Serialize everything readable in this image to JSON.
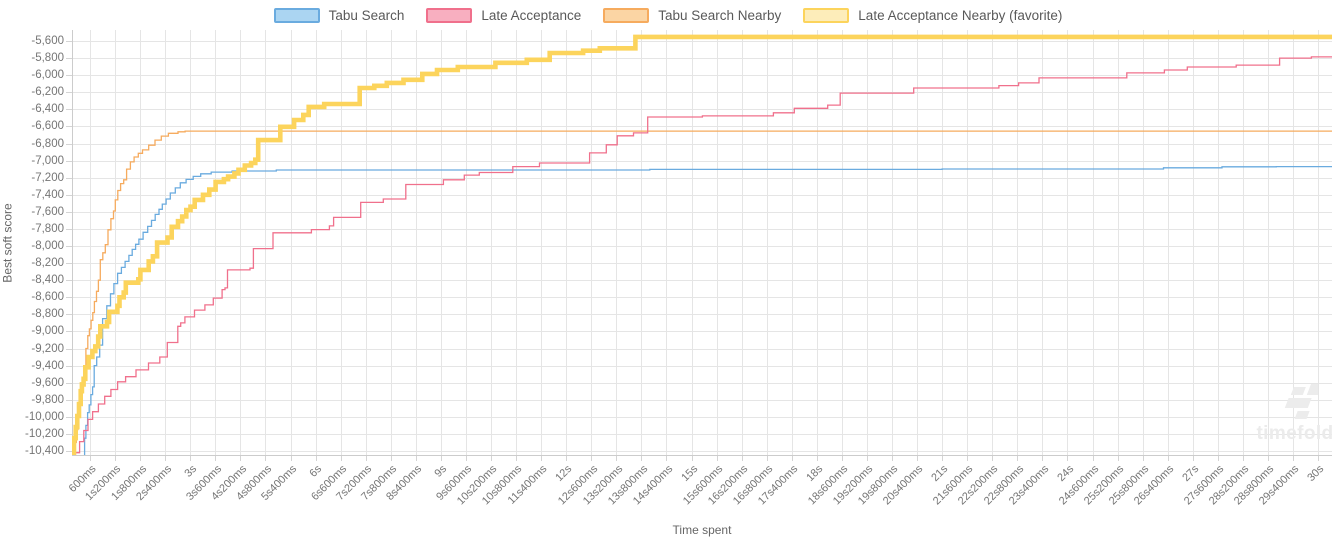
{
  "legend": {
    "items": [
      "Tabu Search",
      "Late Acceptance",
      "Tabu Search Nearby",
      "Late Acceptance Nearby (favorite)"
    ]
  },
  "watermark": {
    "text": "timefold",
    "color": "#ececec"
  },
  "colors": {
    "grid": "#e5e5e5",
    "axis_border": "#cccccc",
    "tick_mark": "#d4d4d4",
    "tick_label": "#757575",
    "axis_title": "#666666",
    "legend_text": "#595959"
  },
  "chart_data": {
    "type": "line",
    "step": "after",
    "title": "",
    "xlabel": "Time spent",
    "ylabel": "Best soft score",
    "x_unit": "milliseconds",
    "xlim_ms": [
      0,
      30300
    ],
    "ylim": [
      -10450,
      -5550
    ],
    "grid": true,
    "legend_position": "top",
    "x_tick_ms": [
      600,
      1200,
      1800,
      2400,
      3000,
      3600,
      4200,
      4800,
      5400,
      6000,
      6600,
      7200,
      7800,
      8400,
      9000,
      9600,
      10200,
      10800,
      11400,
      12000,
      12600,
      13200,
      13800,
      14400,
      15000,
      15600,
      16200,
      16800,
      17400,
      18000,
      18600,
      19200,
      19800,
      20400,
      21000,
      21600,
      22200,
      22800,
      23400,
      24000,
      24600,
      25200,
      25800,
      26400,
      27000,
      27600,
      28200,
      28800,
      29400,
      30000
    ],
    "x_tick_labels": [
      "600ms",
      "1s200ms",
      "1s800ms",
      "2s400ms",
      "3s",
      "3s600ms",
      "4s200ms",
      "4s800ms",
      "5s400ms",
      "6s",
      "6s600ms",
      "7s200ms",
      "7s800ms",
      "8s400ms",
      "9s",
      "9s600ms",
      "10s200ms",
      "10s800ms",
      "11s400ms",
      "12s",
      "12s600ms",
      "13s200ms",
      "13s800ms",
      "14s400ms",
      "15s",
      "15s600ms",
      "16s200ms",
      "16s800ms",
      "17s400ms",
      "18s",
      "18s600ms",
      "19s200ms",
      "19s800ms",
      "20s400ms",
      "21s",
      "21s600ms",
      "22s200ms",
      "22s800ms",
      "23s400ms",
      "24s",
      "24s600ms",
      "25s200ms",
      "25s800ms",
      "26s400ms",
      "27s",
      "27s600ms",
      "28s200ms",
      "28s800ms",
      "29s400ms",
      "30s"
    ],
    "y_tick_labels": [
      "-5,600",
      "-5,800",
      "-6,000",
      "-6,200",
      "-6,400",
      "-6,600",
      "-6,800",
      "-7,000",
      "-7,200",
      "-7,400",
      "-7,600",
      "-7,800",
      "-8,000",
      "-8,200",
      "-8,400",
      "-8,600",
      "-8,800",
      "-9,000",
      "-9,200",
      "-9,400",
      "-9,600",
      "-9,800",
      "-10,000",
      "-10,200",
      "-10,400"
    ],
    "y_tick_start": -5600,
    "y_tick_step": -200,
    "series": [
      {
        "id": "tabu_search",
        "name": "Tabu Search",
        "color": "#6aabdf",
        "fill": "#abd5f2",
        "line_width": 1.3,
        "points": [
          [
            430,
            -10460
          ],
          [
            470,
            -10250
          ],
          [
            500,
            -10100
          ],
          [
            540,
            -9950
          ],
          [
            580,
            -9860
          ],
          [
            620,
            -9740
          ],
          [
            660,
            -9650
          ],
          [
            700,
            -9400
          ],
          [
            760,
            -9300
          ],
          [
            830,
            -9160
          ],
          [
            900,
            -8850
          ],
          [
            1000,
            -8700
          ],
          [
            1090,
            -8560
          ],
          [
            1170,
            -8440
          ],
          [
            1260,
            -8320
          ],
          [
            1350,
            -8250
          ],
          [
            1440,
            -8180
          ],
          [
            1530,
            -8110
          ],
          [
            1610,
            -8040
          ],
          [
            1690,
            -7980
          ],
          [
            1770,
            -7920
          ],
          [
            1870,
            -7840
          ],
          [
            1980,
            -7770
          ],
          [
            2070,
            -7700
          ],
          [
            2160,
            -7630
          ],
          [
            2250,
            -7570
          ],
          [
            2330,
            -7510
          ],
          [
            2420,
            -7450
          ],
          [
            2520,
            -7380
          ],
          [
            2640,
            -7320
          ],
          [
            2760,
            -7260
          ],
          [
            2900,
            -7220
          ],
          [
            3070,
            -7185
          ],
          [
            3250,
            -7155
          ],
          [
            3500,
            -7135
          ],
          [
            4000,
            -7122
          ],
          [
            5060,
            -7110
          ],
          [
            14000,
            -7103
          ],
          [
            21000,
            -7098
          ],
          [
            26300,
            -7085
          ],
          [
            27700,
            -7073
          ],
          [
            29000,
            -7070
          ]
        ]
      },
      {
        "id": "late_acceptance",
        "name": "Late Acceptance",
        "color": "#f0708c",
        "fill": "#f8afc0",
        "line_width": 1.3,
        "points": [
          [
            260,
            -10420
          ],
          [
            350,
            -10290
          ],
          [
            450,
            -10160
          ],
          [
            550,
            -10030
          ],
          [
            660,
            -9940
          ],
          [
            800,
            -9850
          ],
          [
            950,
            -9760
          ],
          [
            1100,
            -9680
          ],
          [
            1260,
            -9590
          ],
          [
            1450,
            -9530
          ],
          [
            1700,
            -9450
          ],
          [
            2000,
            -9370
          ],
          [
            2270,
            -9300
          ],
          [
            2450,
            -9130
          ],
          [
            2700,
            -8940
          ],
          [
            2770,
            -8900
          ],
          [
            2870,
            -8830
          ],
          [
            3100,
            -8750
          ],
          [
            3350,
            -8690
          ],
          [
            3550,
            -8610
          ],
          [
            3760,
            -8510
          ],
          [
            3830,
            -8490
          ],
          [
            3890,
            -8280
          ],
          [
            4430,
            -8260
          ],
          [
            4510,
            -8030
          ],
          [
            4980,
            -7845
          ],
          [
            5900,
            -7808
          ],
          [
            6330,
            -7765
          ],
          [
            6430,
            -7665
          ],
          [
            7080,
            -7490
          ],
          [
            7620,
            -7450
          ],
          [
            8160,
            -7280
          ],
          [
            9060,
            -7225
          ],
          [
            9560,
            -7170
          ],
          [
            9920,
            -7140
          ],
          [
            10720,
            -7070
          ],
          [
            11360,
            -7028
          ],
          [
            12560,
            -6910
          ],
          [
            12960,
            -6815
          ],
          [
            13220,
            -6710
          ],
          [
            13610,
            -6676
          ],
          [
            13950,
            -6490
          ],
          [
            15260,
            -6477
          ],
          [
            16960,
            -6440
          ],
          [
            17460,
            -6388
          ],
          [
            18260,
            -6350
          ],
          [
            18560,
            -6210
          ],
          [
            20320,
            -6150
          ],
          [
            22360,
            -6122
          ],
          [
            22830,
            -6090
          ],
          [
            23320,
            -6032
          ],
          [
            25420,
            -5974
          ],
          [
            26320,
            -5940
          ],
          [
            26870,
            -5904
          ],
          [
            28040,
            -5882
          ],
          [
            29080,
            -5800
          ],
          [
            29840,
            -5786
          ]
        ]
      },
      {
        "id": "tabu_search_nearby",
        "name": "Tabu Search Nearby",
        "color": "#f6ab5e",
        "fill": "#fbd5a4",
        "line_width": 1.3,
        "points": [
          [
            210,
            -10470
          ],
          [
            240,
            -10300
          ],
          [
            270,
            -10150
          ],
          [
            310,
            -9990
          ],
          [
            345,
            -9850
          ],
          [
            385,
            -9700
          ],
          [
            420,
            -9550
          ],
          [
            460,
            -9400
          ],
          [
            500,
            -9200
          ],
          [
            545,
            -9050
          ],
          [
            585,
            -8970
          ],
          [
            625,
            -8870
          ],
          [
            665,
            -8780
          ],
          [
            705,
            -8650
          ],
          [
            755,
            -8530
          ],
          [
            800,
            -8400
          ],
          [
            845,
            -8160
          ],
          [
            905,
            -8080
          ],
          [
            965,
            -7985
          ],
          [
            1030,
            -7810
          ],
          [
            1100,
            -7680
          ],
          [
            1160,
            -7590
          ],
          [
            1205,
            -7460
          ],
          [
            1265,
            -7350
          ],
          [
            1330,
            -7270
          ],
          [
            1405,
            -7225
          ],
          [
            1475,
            -7100
          ],
          [
            1565,
            -7015
          ],
          [
            1655,
            -6958
          ],
          [
            1755,
            -6915
          ],
          [
            1855,
            -6875
          ],
          [
            2005,
            -6820
          ],
          [
            2155,
            -6760
          ],
          [
            2305,
            -6713
          ],
          [
            2475,
            -6680
          ],
          [
            2705,
            -6663
          ],
          [
            2875,
            -6655
          ]
        ]
      },
      {
        "id": "late_acceptance_nearby",
        "name": "Late Acceptance Nearby (favorite)",
        "color": "#fcd45c",
        "fill": "#fdedba",
        "line_width": 4.6,
        "points": [
          [
            180,
            -10470
          ],
          [
            215,
            -10250
          ],
          [
            255,
            -10120
          ],
          [
            295,
            -9990
          ],
          [
            335,
            -9850
          ],
          [
            375,
            -9700
          ],
          [
            405,
            -9620
          ],
          [
            445,
            -9555
          ],
          [
            485,
            -9420
          ],
          [
            565,
            -9300
          ],
          [
            655,
            -9230
          ],
          [
            725,
            -9175
          ],
          [
            795,
            -9060
          ],
          [
            845,
            -8940
          ],
          [
            1005,
            -8890
          ],
          [
            1055,
            -8770
          ],
          [
            1255,
            -8700
          ],
          [
            1305,
            -8600
          ],
          [
            1405,
            -8545
          ],
          [
            1455,
            -8430
          ],
          [
            1755,
            -8390
          ],
          [
            1805,
            -8280
          ],
          [
            2005,
            -8180
          ],
          [
            2105,
            -8120
          ],
          [
            2205,
            -7960
          ],
          [
            2455,
            -7900
          ],
          [
            2555,
            -7775
          ],
          [
            2705,
            -7710
          ],
          [
            2805,
            -7655
          ],
          [
            2905,
            -7580
          ],
          [
            3005,
            -7540
          ],
          [
            3105,
            -7460
          ],
          [
            3305,
            -7400
          ],
          [
            3455,
            -7340
          ],
          [
            3605,
            -7250
          ],
          [
            3805,
            -7218
          ],
          [
            3905,
            -7188
          ],
          [
            4055,
            -7150
          ],
          [
            4155,
            -7108
          ],
          [
            4305,
            -7058
          ],
          [
            4455,
            -7028
          ],
          [
            4555,
            -6990
          ],
          [
            4625,
            -6760
          ],
          [
            5155,
            -6605
          ],
          [
            5485,
            -6525
          ],
          [
            5705,
            -6465
          ],
          [
            5835,
            -6372
          ],
          [
            6205,
            -6337
          ],
          [
            7055,
            -6150
          ],
          [
            7405,
            -6124
          ],
          [
            7705,
            -6090
          ],
          [
            8105,
            -6054
          ],
          [
            8555,
            -5985
          ],
          [
            8905,
            -5940
          ],
          [
            9405,
            -5904
          ],
          [
            10305,
            -5855
          ],
          [
            11055,
            -5820
          ],
          [
            11605,
            -5740
          ],
          [
            12405,
            -5714
          ],
          [
            12805,
            -5685
          ],
          [
            13655,
            -5552
          ]
        ]
      }
    ]
  }
}
